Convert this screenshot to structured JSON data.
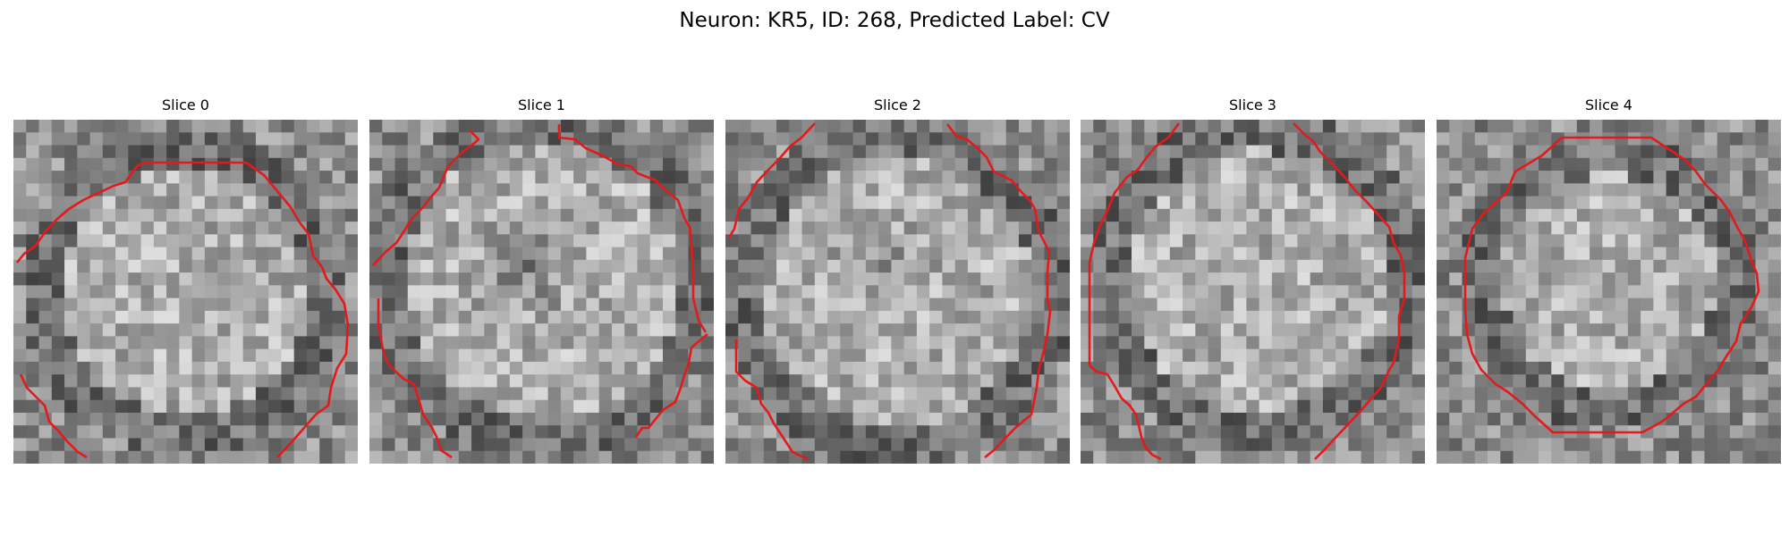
{
  "figure": {
    "title": "Neuron: KR5, ID: 268, Predicted Label: CV"
  },
  "panels": [
    {
      "title": "Slice 0"
    },
    {
      "title": "Slice 1"
    },
    {
      "title": "Slice 2"
    },
    {
      "title": "Slice 3"
    },
    {
      "title": "Slice 4"
    }
  ],
  "colors": {
    "contour": "#e31a1c"
  }
}
